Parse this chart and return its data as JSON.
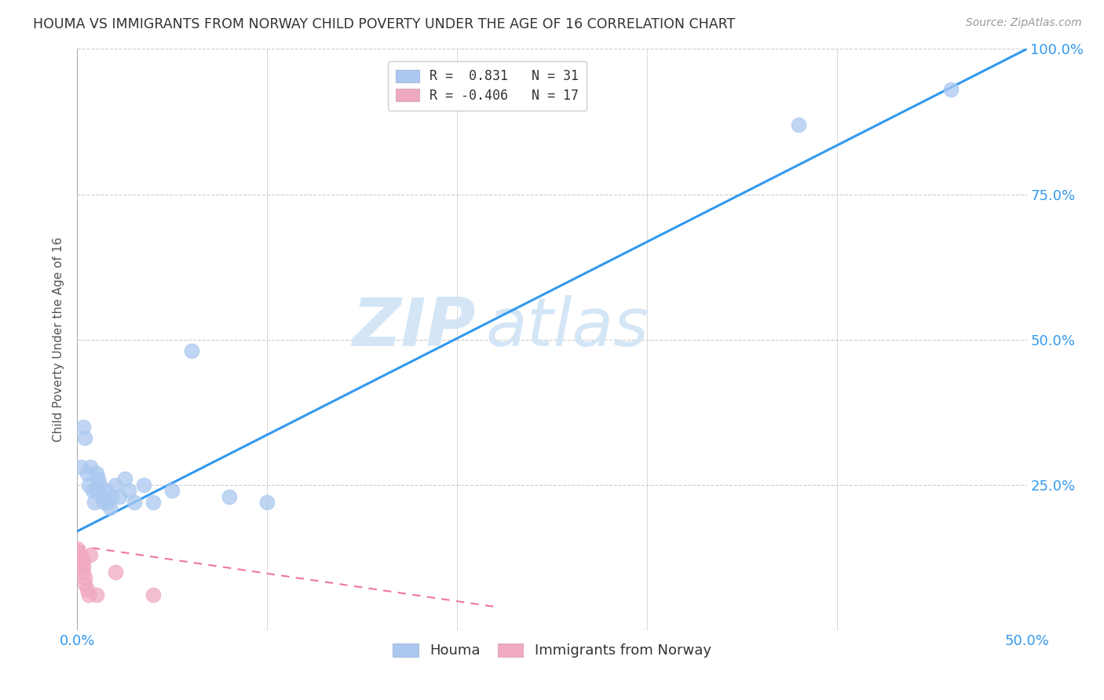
{
  "title": "HOUMA VS IMMIGRANTS FROM NORWAY CHILD POVERTY UNDER THE AGE OF 16 CORRELATION CHART",
  "source": "Source: ZipAtlas.com",
  "ylabel_text": "Child Poverty Under the Age of 16",
  "xlim": [
    0.0,
    0.5
  ],
  "ylim": [
    0.0,
    1.0
  ],
  "xtick_positions": [
    0.0,
    0.1,
    0.2,
    0.3,
    0.4,
    0.5
  ],
  "xtick_labels": [
    "0.0%",
    "",
    "",
    "",
    "",
    "50.0%"
  ],
  "ytick_positions": [
    0.0,
    0.25,
    0.5,
    0.75,
    1.0
  ],
  "ytick_labels_right": [
    "",
    "25.0%",
    "50.0%",
    "75.0%",
    "100.0%"
  ],
  "houma_color": "#aac8f0",
  "norway_color": "#f0aac0",
  "houma_line_color": "#3399ee",
  "norway_line_color": "#ee7799",
  "watermark_zip": "ZIP",
  "watermark_atlas": "atlas",
  "houma_scatter": [
    [
      0.002,
      0.28
    ],
    [
      0.003,
      0.35
    ],
    [
      0.004,
      0.33
    ],
    [
      0.005,
      0.27
    ],
    [
      0.006,
      0.25
    ],
    [
      0.007,
      0.28
    ],
    [
      0.008,
      0.24
    ],
    [
      0.009,
      0.22
    ],
    [
      0.01,
      0.27
    ],
    [
      0.01,
      0.24
    ],
    [
      0.011,
      0.26
    ],
    [
      0.012,
      0.25
    ],
    [
      0.013,
      0.23
    ],
    [
      0.014,
      0.22
    ],
    [
      0.015,
      0.24
    ],
    [
      0.016,
      0.22
    ],
    [
      0.017,
      0.21
    ],
    [
      0.018,
      0.23
    ],
    [
      0.02,
      0.25
    ],
    [
      0.022,
      0.23
    ],
    [
      0.025,
      0.26
    ],
    [
      0.027,
      0.24
    ],
    [
      0.03,
      0.22
    ],
    [
      0.035,
      0.25
    ],
    [
      0.04,
      0.22
    ],
    [
      0.05,
      0.24
    ],
    [
      0.06,
      0.48
    ],
    [
      0.08,
      0.23
    ],
    [
      0.1,
      0.22
    ],
    [
      0.38,
      0.87
    ],
    [
      0.46,
      0.93
    ]
  ],
  "norway_scatter": [
    [
      0.0,
      0.14
    ],
    [
      0.001,
      0.13
    ],
    [
      0.001,
      0.12
    ],
    [
      0.002,
      0.13
    ],
    [
      0.002,
      0.12
    ],
    [
      0.002,
      0.11
    ],
    [
      0.003,
      0.12
    ],
    [
      0.003,
      0.11
    ],
    [
      0.003,
      0.1
    ],
    [
      0.004,
      0.09
    ],
    [
      0.004,
      0.08
    ],
    [
      0.005,
      0.07
    ],
    [
      0.006,
      0.06
    ],
    [
      0.007,
      0.13
    ],
    [
      0.01,
      0.06
    ],
    [
      0.02,
      0.1
    ],
    [
      0.04,
      0.06
    ]
  ],
  "houma_line_x": [
    0.0,
    0.5
  ],
  "houma_line_y": [
    0.17,
    1.0
  ],
  "norway_line_x": [
    0.0,
    0.22
  ],
  "norway_line_y": [
    0.145,
    0.04
  ],
  "background_color": "#ffffff",
  "grid_color": "#cccccc",
  "axis_label_color": "#3399ee",
  "title_color": "#333333",
  "legend_R_houma": "R =  0.831",
  "legend_N_houma": "N = 31",
  "legend_R_norway": "R = -0.406",
  "legend_N_norway": "N = 17"
}
